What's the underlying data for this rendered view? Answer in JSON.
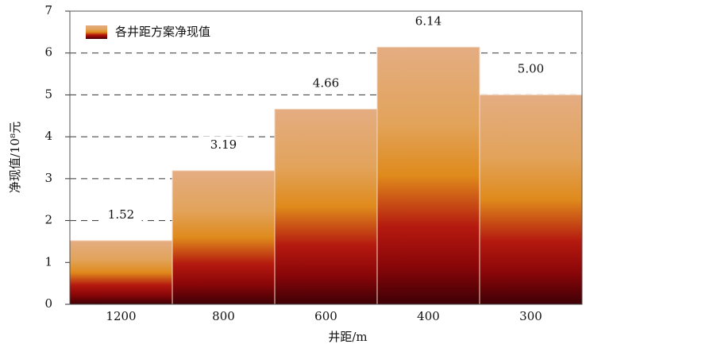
{
  "chart_data": {
    "type": "bar",
    "x_label": "井距/m",
    "y_label": "净现值/10⁸元",
    "categories": [
      "1200",
      "800",
      "600",
      "400",
      "300"
    ],
    "series": [
      {
        "name": "各井距方案净现值",
        "values": [
          1.52,
          3.19,
          4.66,
          6.14,
          5.0
        ],
        "value_labels": [
          "1.52",
          "3.19",
          "4.66",
          "6.14",
          "5.00"
        ]
      }
    ],
    "ylim": [
      0,
      7
    ],
    "yticks": [
      0,
      1,
      2,
      3,
      4,
      5,
      6,
      7
    ],
    "grid": true,
    "legend": "upper left"
  }
}
